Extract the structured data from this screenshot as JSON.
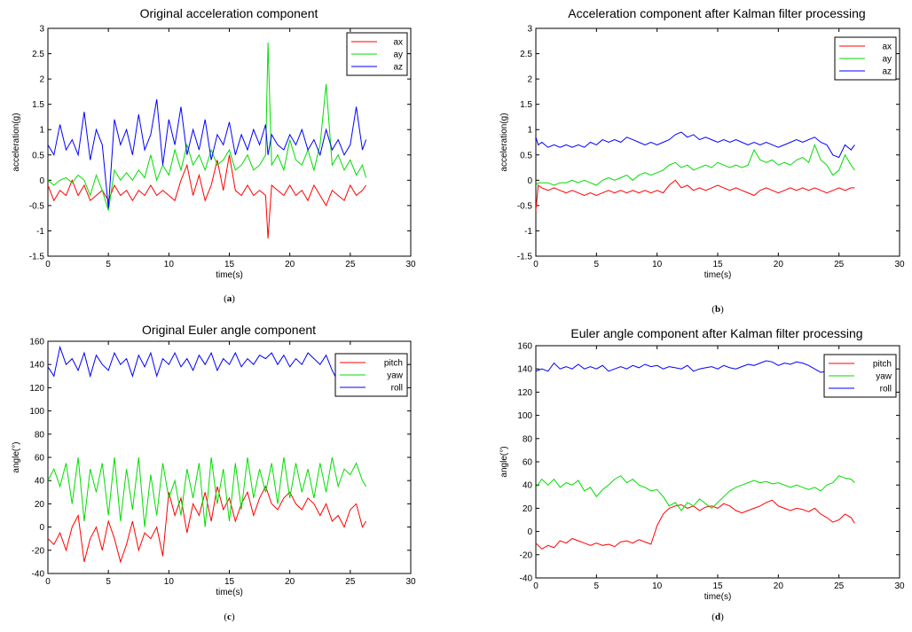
{
  "chart_data": [
    {
      "type": "line",
      "panel_label": "a",
      "title": "Original acceleration component",
      "xlabel": "time(s)",
      "ylabel": "acceleration(g)",
      "xlim": [
        0,
        30
      ],
      "ylim": [
        -1.5,
        3
      ],
      "xticks": [
        0,
        5,
        10,
        15,
        20,
        25,
        30
      ],
      "yticks": [
        -1.5,
        -1,
        -0.5,
        0,
        0.5,
        1,
        1.5,
        2,
        2.5,
        3
      ],
      "legend_position": "top-right",
      "colors": {
        "ax": "#ff0000",
        "ay": "#00dd00",
        "az": "#0000ff"
      },
      "x": [
        0,
        0.5,
        1,
        1.5,
        2,
        2.5,
        3,
        3.5,
        4,
        4.5,
        5,
        5.5,
        6,
        6.5,
        7,
        7.5,
        8,
        8.5,
        9,
        9.5,
        10,
        10.5,
        11,
        11.5,
        12,
        12.5,
        13,
        13.5,
        14,
        14.5,
        15,
        15.5,
        16,
        16.5,
        17,
        17.5,
        18,
        18.2,
        18.5,
        19,
        19.5,
        20,
        20.5,
        21,
        21.5,
        22,
        22.5,
        23,
        23.5,
        24,
        24.5,
        25,
        25.5,
        26,
        26.3
      ],
      "series": [
        {
          "name": "ax",
          "values": [
            -0.1,
            -0.4,
            -0.2,
            -0.3,
            0.0,
            -0.3,
            -0.1,
            -0.4,
            -0.3,
            -0.2,
            -0.4,
            -0.1,
            -0.3,
            -0.2,
            -0.4,
            -0.2,
            -0.3,
            -0.1,
            -0.3,
            -0.2,
            -0.3,
            -0.4,
            0.0,
            0.3,
            -0.3,
            0.1,
            -0.4,
            -0.1,
            0.4,
            -0.2,
            0.5,
            -0.2,
            -0.3,
            -0.1,
            -0.3,
            -0.2,
            -0.3,
            -1.15,
            -0.1,
            -0.2,
            -0.3,
            -0.1,
            -0.3,
            -0.2,
            -0.4,
            -0.1,
            -0.3,
            -0.5,
            -0.2,
            -0.3,
            -0.4,
            -0.1,
            -0.3,
            -0.2,
            -0.1
          ]
        },
        {
          "name": "ay",
          "values": [
            0.0,
            -0.1,
            0.0,
            0.05,
            -0.05,
            0.1,
            0.0,
            -0.3,
            0.1,
            -0.2,
            -0.6,
            0.2,
            0.0,
            0.15,
            0.0,
            0.2,
            0.05,
            0.5,
            0.0,
            0.3,
            0.1,
            0.6,
            0.2,
            0.7,
            0.3,
            0.5,
            0.2,
            0.6,
            0.3,
            0.4,
            0.6,
            0.2,
            0.3,
            0.5,
            0.2,
            0.3,
            0.5,
            2.72,
            0.3,
            0.5,
            0.2,
            0.8,
            0.4,
            0.3,
            0.6,
            0.2,
            0.7,
            1.9,
            0.3,
            0.5,
            0.2,
            0.4,
            0.1,
            0.3,
            0.05
          ]
        },
        {
          "name": "az",
          "values": [
            0.7,
            0.5,
            1.1,
            0.6,
            0.8,
            0.5,
            1.35,
            0.4,
            1.0,
            0.7,
            -0.55,
            1.2,
            0.7,
            1.0,
            0.5,
            1.3,
            0.6,
            0.9,
            1.6,
            0.3,
            1.2,
            0.7,
            1.45,
            0.5,
            1.0,
            0.6,
            1.2,
            0.4,
            0.9,
            0.7,
            1.15,
            0.5,
            0.9,
            0.6,
            1.0,
            0.7,
            1.1,
            0.5,
            0.9,
            0.7,
            0.6,
            0.9,
            0.7,
            1.0,
            0.6,
            0.8,
            0.5,
            1.0,
            0.6,
            0.8,
            0.5,
            0.7,
            1.45,
            0.6,
            0.8
          ]
        }
      ]
    },
    {
      "type": "line",
      "panel_label": "b",
      "title": "Acceleration component after Kalman filter processing",
      "xlabel": "time(s)",
      "ylabel": "acceleration(g)",
      "xlim": [
        0,
        30
      ],
      "ylim": [
        -1.5,
        3
      ],
      "xticks": [
        0,
        5,
        10,
        15,
        20,
        25,
        30
      ],
      "yticks": [
        -1.5,
        -1,
        -0.5,
        0,
        0.5,
        1,
        1.5,
        2,
        2.5,
        3
      ],
      "legend_position": "top-right",
      "colors": {
        "ax": "#ff0000",
        "ay": "#00dd00",
        "az": "#0000ff"
      },
      "x": [
        0,
        0.2,
        0.5,
        1,
        1.5,
        2,
        2.5,
        3,
        3.5,
        4,
        4.5,
        5,
        5.5,
        6,
        6.5,
        7,
        7.5,
        8,
        8.5,
        9,
        9.5,
        10,
        10.5,
        11,
        11.5,
        12,
        12.5,
        13,
        13.5,
        14,
        14.5,
        15,
        15.5,
        16,
        16.5,
        17,
        17.5,
        18,
        18.5,
        19,
        19.5,
        20,
        20.5,
        21,
        21.5,
        22,
        22.5,
        23,
        23.5,
        24,
        24.5,
        25,
        25.5,
        26,
        26.3
      ],
      "series": [
        {
          "name": "ax",
          "values": [
            -0.6,
            -0.1,
            -0.15,
            -0.2,
            -0.15,
            -0.2,
            -0.25,
            -0.2,
            -0.25,
            -0.3,
            -0.25,
            -0.3,
            -0.25,
            -0.2,
            -0.25,
            -0.2,
            -0.25,
            -0.2,
            -0.25,
            -0.2,
            -0.25,
            -0.2,
            -0.25,
            -0.1,
            0.0,
            -0.15,
            -0.1,
            -0.2,
            -0.15,
            -0.2,
            -0.15,
            -0.1,
            -0.15,
            -0.2,
            -0.15,
            -0.2,
            -0.25,
            -0.3,
            -0.2,
            -0.15,
            -0.2,
            -0.25,
            -0.2,
            -0.15,
            -0.2,
            -0.15,
            -0.2,
            -0.15,
            -0.2,
            -0.25,
            -0.2,
            -0.15,
            -0.2,
            -0.15,
            -0.15
          ]
        },
        {
          "name": "ay",
          "values": [
            -0.1,
            -0.05,
            -0.05,
            -0.05,
            -0.1,
            -0.05,
            -0.05,
            0.0,
            -0.05,
            0.0,
            -0.05,
            -0.1,
            0.0,
            0.05,
            0.0,
            0.05,
            0.1,
            0.0,
            0.1,
            0.15,
            0.1,
            0.15,
            0.2,
            0.3,
            0.35,
            0.25,
            0.3,
            0.2,
            0.25,
            0.3,
            0.25,
            0.35,
            0.3,
            0.25,
            0.3,
            0.25,
            0.3,
            0.6,
            0.4,
            0.35,
            0.4,
            0.3,
            0.35,
            0.3,
            0.4,
            0.45,
            0.35,
            0.7,
            0.4,
            0.3,
            0.1,
            0.2,
            0.5,
            0.3,
            0.2
          ]
        },
        {
          "name": "az",
          "values": [
            0.85,
            0.7,
            0.75,
            0.65,
            0.7,
            0.65,
            0.7,
            0.65,
            0.7,
            0.65,
            0.75,
            0.7,
            0.8,
            0.75,
            0.8,
            0.75,
            0.85,
            0.8,
            0.75,
            0.7,
            0.75,
            0.7,
            0.75,
            0.8,
            0.9,
            0.95,
            0.85,
            0.9,
            0.8,
            0.85,
            0.8,
            0.75,
            0.8,
            0.75,
            0.8,
            0.75,
            0.7,
            0.75,
            0.7,
            0.75,
            0.7,
            0.65,
            0.7,
            0.75,
            0.8,
            0.75,
            0.8,
            0.85,
            0.75,
            0.7,
            0.5,
            0.45,
            0.7,
            0.6,
            0.7
          ]
        }
      ]
    },
    {
      "type": "line",
      "panel_label": "c",
      "title": "Original Euler angle component",
      "xlabel": "time(s)",
      "ylabel": "angle(°)",
      "xlim": [
        0,
        30
      ],
      "ylim": [
        -40,
        160
      ],
      "xticks": [
        0,
        5,
        10,
        15,
        20,
        25,
        30
      ],
      "yticks": [
        -40,
        -20,
        0,
        20,
        40,
        60,
        80,
        100,
        120,
        140,
        160
      ],
      "legend_position": "top-right",
      "colors": {
        "pitch": "#ff0000",
        "yaw": "#00dd00",
        "roll": "#0000ff"
      },
      "x": [
        0,
        0.5,
        1,
        1.5,
        2,
        2.5,
        3,
        3.5,
        4,
        4.5,
        5,
        5.5,
        6,
        6.5,
        7,
        7.5,
        8,
        8.5,
        9,
        9.5,
        10,
        10.5,
        11,
        11.5,
        12,
        12.5,
        13,
        13.5,
        14,
        14.5,
        15,
        15.5,
        16,
        16.5,
        17,
        17.5,
        18,
        18.5,
        19,
        19.5,
        20,
        20.5,
        21,
        21.5,
        22,
        22.5,
        23,
        23.5,
        24,
        24.5,
        25,
        25.5,
        26,
        26.3
      ],
      "series": [
        {
          "name": "pitch",
          "values": [
            -10,
            -15,
            -5,
            -20,
            0,
            10,
            -30,
            -10,
            0,
            -20,
            5,
            -10,
            -30,
            -15,
            5,
            -20,
            -5,
            -10,
            0,
            -25,
            30,
            10,
            25,
            -5,
            20,
            10,
            30,
            5,
            35,
            15,
            25,
            5,
            20,
            30,
            10,
            25,
            35,
            20,
            15,
            25,
            30,
            20,
            15,
            25,
            20,
            10,
            20,
            5,
            10,
            0,
            15,
            20,
            0,
            5
          ]
        },
        {
          "name": "yaw",
          "values": [
            40,
            50,
            35,
            55,
            20,
            60,
            5,
            50,
            30,
            55,
            10,
            60,
            5,
            50,
            15,
            60,
            0,
            45,
            10,
            55,
            25,
            40,
            10,
            50,
            25,
            55,
            0,
            60,
            20,
            50,
            5,
            55,
            15,
            60,
            25,
            50,
            30,
            55,
            20,
            60,
            25,
            55,
            30,
            50,
            25,
            55,
            30,
            60,
            35,
            50,
            45,
            55,
            40,
            35
          ]
        },
        {
          "name": "roll",
          "values": [
            138,
            130,
            155,
            140,
            145,
            135,
            150,
            130,
            148,
            140,
            135,
            150,
            140,
            145,
            130,
            148,
            138,
            150,
            130,
            145,
            140,
            150,
            138,
            145,
            135,
            148,
            140,
            150,
            135,
            145,
            140,
            150,
            138,
            145,
            140,
            148,
            145,
            150,
            140,
            148,
            138,
            145,
            140,
            150,
            145,
            140,
            148,
            135,
            125,
            138,
            140,
            135,
            140,
            138
          ]
        }
      ]
    },
    {
      "type": "line",
      "panel_label": "d",
      "title": "Euler angle component after Kalman filter processing",
      "xlabel": "time(s)",
      "ylabel": "angle(°)",
      "xlim": [
        0,
        30
      ],
      "ylim": [
        -40,
        160
      ],
      "xticks": [
        0,
        5,
        10,
        15,
        20,
        25,
        30
      ],
      "yticks": [
        -40,
        -20,
        0,
        20,
        40,
        60,
        80,
        100,
        120,
        140,
        160
      ],
      "legend_position": "top-right",
      "colors": {
        "pitch": "#ff0000",
        "yaw": "#00dd00",
        "roll": "#0000ff"
      },
      "x": [
        0,
        0.5,
        1,
        1.5,
        2,
        2.5,
        3,
        3.5,
        4,
        4.5,
        5,
        5.5,
        6,
        6.5,
        7,
        7.5,
        8,
        8.5,
        9,
        9.5,
        10,
        10.5,
        11,
        11.5,
        12,
        12.5,
        13,
        13.5,
        14,
        14.5,
        15,
        15.5,
        16,
        16.5,
        17,
        17.5,
        18,
        18.5,
        19,
        19.5,
        20,
        20.5,
        21,
        21.5,
        22,
        22.5,
        23,
        23.5,
        24,
        24.5,
        25,
        25.5,
        26,
        26.3
      ],
      "series": [
        {
          "name": "pitch",
          "values": [
            -10,
            -15,
            -12,
            -14,
            -8,
            -10,
            -6,
            -8,
            -10,
            -12,
            -10,
            -12,
            -11,
            -13,
            -9,
            -8,
            -10,
            -7,
            -9,
            -11,
            5,
            15,
            20,
            22,
            23,
            20,
            22,
            18,
            21,
            22,
            20,
            24,
            22,
            18,
            16,
            18,
            20,
            22,
            25,
            27,
            22,
            20,
            18,
            20,
            19,
            17,
            20,
            15,
            12,
            8,
            10,
            15,
            12,
            7
          ]
        },
        {
          "name": "yaw",
          "values": [
            38,
            45,
            40,
            45,
            38,
            42,
            40,
            44,
            35,
            38,
            30,
            36,
            40,
            45,
            48,
            42,
            45,
            40,
            38,
            35,
            36,
            30,
            22,
            25,
            18,
            25,
            22,
            28,
            24,
            20,
            25,
            30,
            35,
            38,
            40,
            42,
            44,
            42,
            43,
            41,
            42,
            40,
            38,
            40,
            38,
            36,
            38,
            35,
            40,
            42,
            48,
            46,
            45,
            42
          ]
        },
        {
          "name": "roll",
          "values": [
            138,
            140,
            138,
            145,
            140,
            142,
            140,
            144,
            140,
            142,
            140,
            143,
            138,
            140,
            142,
            140,
            143,
            141,
            144,
            142,
            143,
            140,
            142,
            141,
            140,
            143,
            138,
            140,
            141,
            142,
            140,
            143,
            141,
            140,
            142,
            144,
            143,
            145,
            147,
            146,
            143,
            145,
            144,
            146,
            145,
            143,
            140,
            137,
            138,
            140,
            135,
            136,
            134,
            136
          ]
        }
      ]
    }
  ]
}
